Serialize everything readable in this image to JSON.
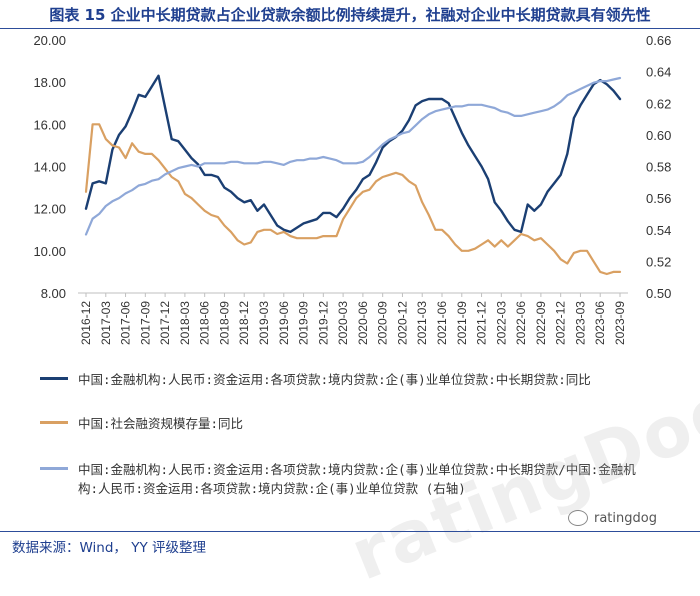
{
  "header": {
    "title": "图表 15 企业中长期贷款占企业贷款余额比例持续提升，社融对企业中长期贷款具有领先性"
  },
  "footer": {
    "source": "数据来源：Wind， YY 评级整理",
    "watermark": "ratingDog",
    "wechat_label": "ratingdog"
  },
  "legend": [
    {
      "label": "中国:金融机构:人民币:资金运用:各项贷款:境内贷款:企(事)业单位贷款:中长期贷款:同比",
      "color": "#1b3f73"
    },
    {
      "label": "中国:社会融资规模存量:同比",
      "color": "#d9a062"
    },
    {
      "label": "中国:金融机构:人民币:资金运用:各项贷款:境内贷款:企(事)业单位贷款:中长期贷款/中国:金融机构:人民币:资金运用:各项贷款:境内贷款:企(事)业单位贷款 (右轴)",
      "color": "#8fa8d8"
    }
  ],
  "chart_data": {
    "type": "line",
    "x": [
      "2016-12",
      "2017-01",
      "2017-02",
      "2017-03",
      "2017-04",
      "2017-05",
      "2017-06",
      "2017-07",
      "2017-08",
      "2017-09",
      "2017-10",
      "2017-11",
      "2017-12",
      "2018-01",
      "2018-02",
      "2018-03",
      "2018-04",
      "2018-05",
      "2018-06",
      "2018-07",
      "2018-08",
      "2018-09",
      "2018-10",
      "2018-11",
      "2018-12",
      "2019-01",
      "2019-02",
      "2019-03",
      "2019-04",
      "2019-05",
      "2019-06",
      "2019-07",
      "2019-08",
      "2019-09",
      "2019-10",
      "2019-11",
      "2019-12",
      "2020-01",
      "2020-02",
      "2020-03",
      "2020-04",
      "2020-05",
      "2020-06",
      "2020-07",
      "2020-08",
      "2020-09",
      "2020-10",
      "2020-11",
      "2020-12",
      "2021-01",
      "2021-02",
      "2021-03",
      "2021-04",
      "2021-05",
      "2021-06",
      "2021-07",
      "2021-08",
      "2021-09",
      "2021-10",
      "2021-11",
      "2021-12",
      "2022-01",
      "2022-02",
      "2022-03",
      "2022-04",
      "2022-05",
      "2022-06",
      "2022-07",
      "2022-08",
      "2022-09",
      "2022-10",
      "2022-11",
      "2022-12",
      "2023-01",
      "2023-02",
      "2023-03",
      "2023-04",
      "2023-05",
      "2023-06",
      "2023-07",
      "2023-08",
      "2023-09"
    ],
    "x_ticks": [
      "2016-12",
      "2017-03",
      "2017-06",
      "2017-09",
      "2017-12",
      "2018-03",
      "2018-06",
      "2018-09",
      "2018-12",
      "2019-03",
      "2019-06",
      "2019-09",
      "2019-12",
      "2020-03",
      "2020-06",
      "2020-09",
      "2020-12",
      "2021-03",
      "2021-06",
      "2021-09",
      "2021-12",
      "2022-03",
      "2022-06",
      "2022-09",
      "2022-12",
      "2023-03",
      "2023-06",
      "2023-09"
    ],
    "ylim": [
      8,
      20
    ],
    "y_ticks": [
      "8.00",
      "10.00",
      "12.00",
      "14.00",
      "16.00",
      "18.00",
      "20.00"
    ],
    "y2lim": [
      0.5,
      0.66
    ],
    "y2_ticks": [
      "0.50",
      "0.52",
      "0.54",
      "0.56",
      "0.58",
      "0.60",
      "0.62",
      "0.64",
      "0.66"
    ],
    "grid": false,
    "series": [
      {
        "name": "中国:金融机构:人民币:资金运用:各项贷款:境内贷款:企(事)业单位贷款:中长期贷款:同比",
        "axis": "left",
        "color": "#1b3f73",
        "values": [
          12.0,
          13.2,
          13.3,
          13.2,
          14.8,
          15.5,
          15.9,
          16.6,
          17.4,
          17.3,
          17.8,
          18.3,
          16.8,
          15.3,
          15.2,
          14.8,
          14.4,
          14.1,
          13.6,
          13.6,
          13.5,
          13.0,
          12.8,
          12.5,
          12.3,
          12.4,
          11.9,
          12.2,
          11.7,
          11.2,
          11.0,
          10.9,
          11.1,
          11.3,
          11.4,
          11.5,
          11.8,
          11.8,
          11.6,
          12.0,
          12.5,
          12.9,
          13.4,
          13.6,
          14.2,
          14.9,
          15.2,
          15.4,
          15.7,
          16.2,
          16.9,
          17.1,
          17.2,
          17.2,
          17.2,
          17.0,
          16.3,
          15.6,
          15.0,
          14.5,
          14.0,
          13.4,
          12.3,
          11.9,
          11.4,
          11.0,
          10.9,
          12.2,
          11.9,
          12.2,
          12.8,
          13.2,
          13.6,
          14.6,
          16.3,
          16.9,
          17.4,
          17.9,
          18.1,
          17.9,
          17.6,
          17.2
        ]
      },
      {
        "name": "中国:社会融资规模存量:同比",
        "axis": "left",
        "color": "#d9a062",
        "values": [
          12.8,
          16.0,
          16.0,
          15.3,
          15.0,
          14.9,
          14.4,
          15.1,
          14.7,
          14.6,
          14.6,
          14.3,
          13.9,
          13.5,
          13.3,
          12.7,
          12.5,
          12.2,
          11.9,
          11.7,
          11.6,
          11.2,
          10.9,
          10.5,
          10.3,
          10.4,
          10.9,
          11.0,
          11.0,
          10.8,
          10.9,
          10.7,
          10.6,
          10.6,
          10.6,
          10.6,
          10.7,
          10.7,
          10.7,
          11.5,
          12.0,
          12.5,
          12.8,
          12.9,
          13.3,
          13.5,
          13.6,
          13.7,
          13.6,
          13.3,
          13.1,
          12.3,
          11.7,
          11.0,
          11.0,
          10.7,
          10.3,
          10.0,
          10.0,
          10.1,
          10.3,
          10.5,
          10.2,
          10.5,
          10.2,
          10.5,
          10.8,
          10.7,
          10.5,
          10.6,
          10.3,
          10.0,
          9.6,
          9.4,
          9.9,
          10.0,
          10.0,
          9.5,
          9.0,
          8.9,
          9.0,
          9.0
        ]
      },
      {
        "name": "中国:金融机构:人民币:资金运用:各项贷款:境内贷款:企(事)业单位贷款:中长期贷款/中国:金融机构:人民币:资金运用:各项贷款:境内贷款:企(事)业单位贷款 (右轴)",
        "axis": "right",
        "color": "#8fa8d8",
        "values": [
          0.537,
          0.547,
          0.55,
          0.555,
          0.558,
          0.56,
          0.563,
          0.565,
          0.568,
          0.569,
          0.571,
          0.572,
          0.575,
          0.577,
          0.579,
          0.58,
          0.581,
          0.58,
          0.582,
          0.582,
          0.582,
          0.582,
          0.583,
          0.583,
          0.582,
          0.582,
          0.582,
          0.583,
          0.583,
          0.582,
          0.581,
          0.583,
          0.584,
          0.584,
          0.585,
          0.585,
          0.586,
          0.585,
          0.584,
          0.582,
          0.582,
          0.582,
          0.583,
          0.586,
          0.59,
          0.594,
          0.597,
          0.599,
          0.601,
          0.602,
          0.606,
          0.61,
          0.613,
          0.615,
          0.616,
          0.617,
          0.618,
          0.618,
          0.619,
          0.619,
          0.619,
          0.618,
          0.617,
          0.615,
          0.614,
          0.612,
          0.612,
          0.613,
          0.614,
          0.615,
          0.616,
          0.618,
          0.621,
          0.625,
          0.627,
          0.629,
          0.631,
          0.633,
          0.634,
          0.634,
          0.635,
          0.636
        ]
      }
    ]
  }
}
